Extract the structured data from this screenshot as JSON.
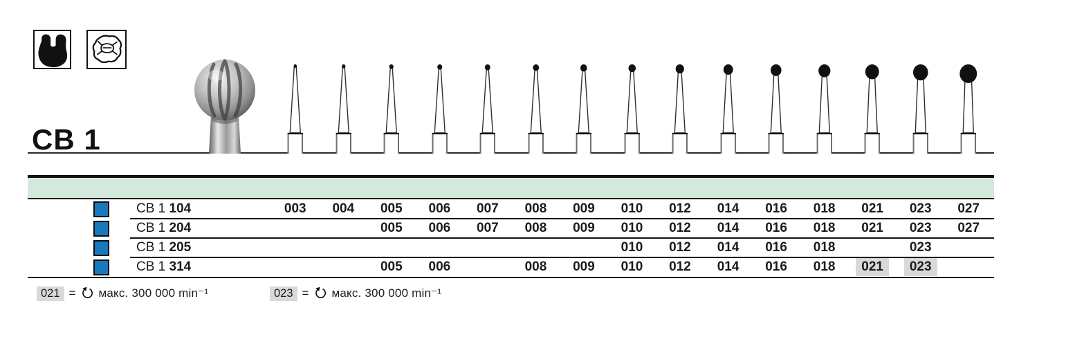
{
  "series_label": "CB 1",
  "icons": {
    "molar_crown": "molar-crown-icon",
    "occlusal": "occlusal-surface-icon"
  },
  "sizes": [
    "003",
    "004",
    "005",
    "006",
    "007",
    "008",
    "009",
    "010",
    "012",
    "014",
    "016",
    "018",
    "021",
    "023",
    "027"
  ],
  "table": {
    "rows": [
      {
        "series": "CB 1",
        "number": "104",
        "available": [
          "003",
          "004",
          "005",
          "006",
          "007",
          "008",
          "009",
          "010",
          "012",
          "014",
          "016",
          "018",
          "021",
          "023",
          "027"
        ],
        "highlighted": []
      },
      {
        "series": "CB 1",
        "number": "204",
        "available": [
          "005",
          "006",
          "007",
          "008",
          "009",
          "010",
          "012",
          "014",
          "016",
          "018",
          "021",
          "023",
          "027"
        ],
        "highlighted": []
      },
      {
        "series": "CB 1",
        "number": "205",
        "available": [
          "010",
          "012",
          "014",
          "016",
          "018",
          "023"
        ],
        "highlighted": []
      },
      {
        "series": "CB 1",
        "number": "314",
        "available": [
          "005",
          "006",
          "008",
          "009",
          "010",
          "012",
          "014",
          "016",
          "018",
          "021",
          "023"
        ],
        "highlighted": [
          "021",
          "023"
        ]
      }
    ]
  },
  "footnotes": [
    {
      "size": "021",
      "eq": "=",
      "text": "макс. 300 000 min⁻¹"
    },
    {
      "size": "023",
      "eq": "=",
      "text": "макс. 300 000 min⁻¹"
    }
  ],
  "colors": {
    "header_band": "#d5e8dc",
    "swatch_blue": "#1878bd",
    "highlight_gray": "#d9d9d9",
    "ink": "#161616"
  }
}
